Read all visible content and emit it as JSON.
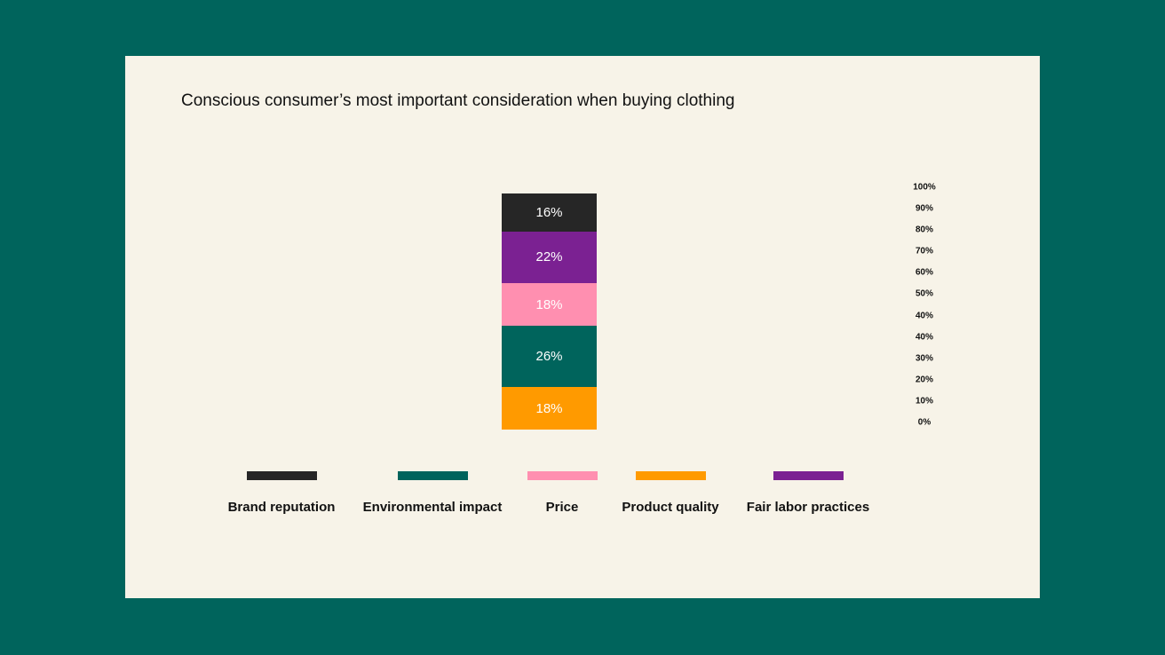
{
  "chart_data": {
    "type": "bar",
    "stacked": true,
    "title": "Conscious consumer’s most important consideration when buying clothing",
    "ylim": [
      0,
      100
    ],
    "y_ticks": [
      "100%",
      "90%",
      "80%",
      "70%",
      "60%",
      "50%",
      "40%",
      "40%",
      "30%",
      "20%",
      "10%",
      "0%"
    ],
    "grid": false,
    "legend_position": "bottom",
    "series": [
      {
        "name": "Product quality",
        "value": 18,
        "label": "18%",
        "color": "#ff9a00"
      },
      {
        "name": "Environmental impact",
        "value": 26,
        "label": "26%",
        "color": "#00645c"
      },
      {
        "name": "Price",
        "value": 18,
        "label": "18%",
        "color": "#ff8fb0"
      },
      {
        "name": "Fair labor practices",
        "value": 22,
        "label": "22%",
        "color": "#7b2192"
      },
      {
        "name": "Brand reputation",
        "value": 16,
        "label": "16%",
        "color": "#262626"
      }
    ],
    "legend": [
      {
        "name": "Brand reputation",
        "color": "#262626"
      },
      {
        "name": "Environmental impact",
        "color": "#00645c"
      },
      {
        "name": "Price",
        "color": "#ff8fb0"
      },
      {
        "name": "Product quality",
        "color": "#ff9a00"
      },
      {
        "name": "Fair labor practices",
        "color": "#7b2192"
      }
    ]
  },
  "colors": {
    "background": "#00645c",
    "card": "#f7f3e8"
  }
}
